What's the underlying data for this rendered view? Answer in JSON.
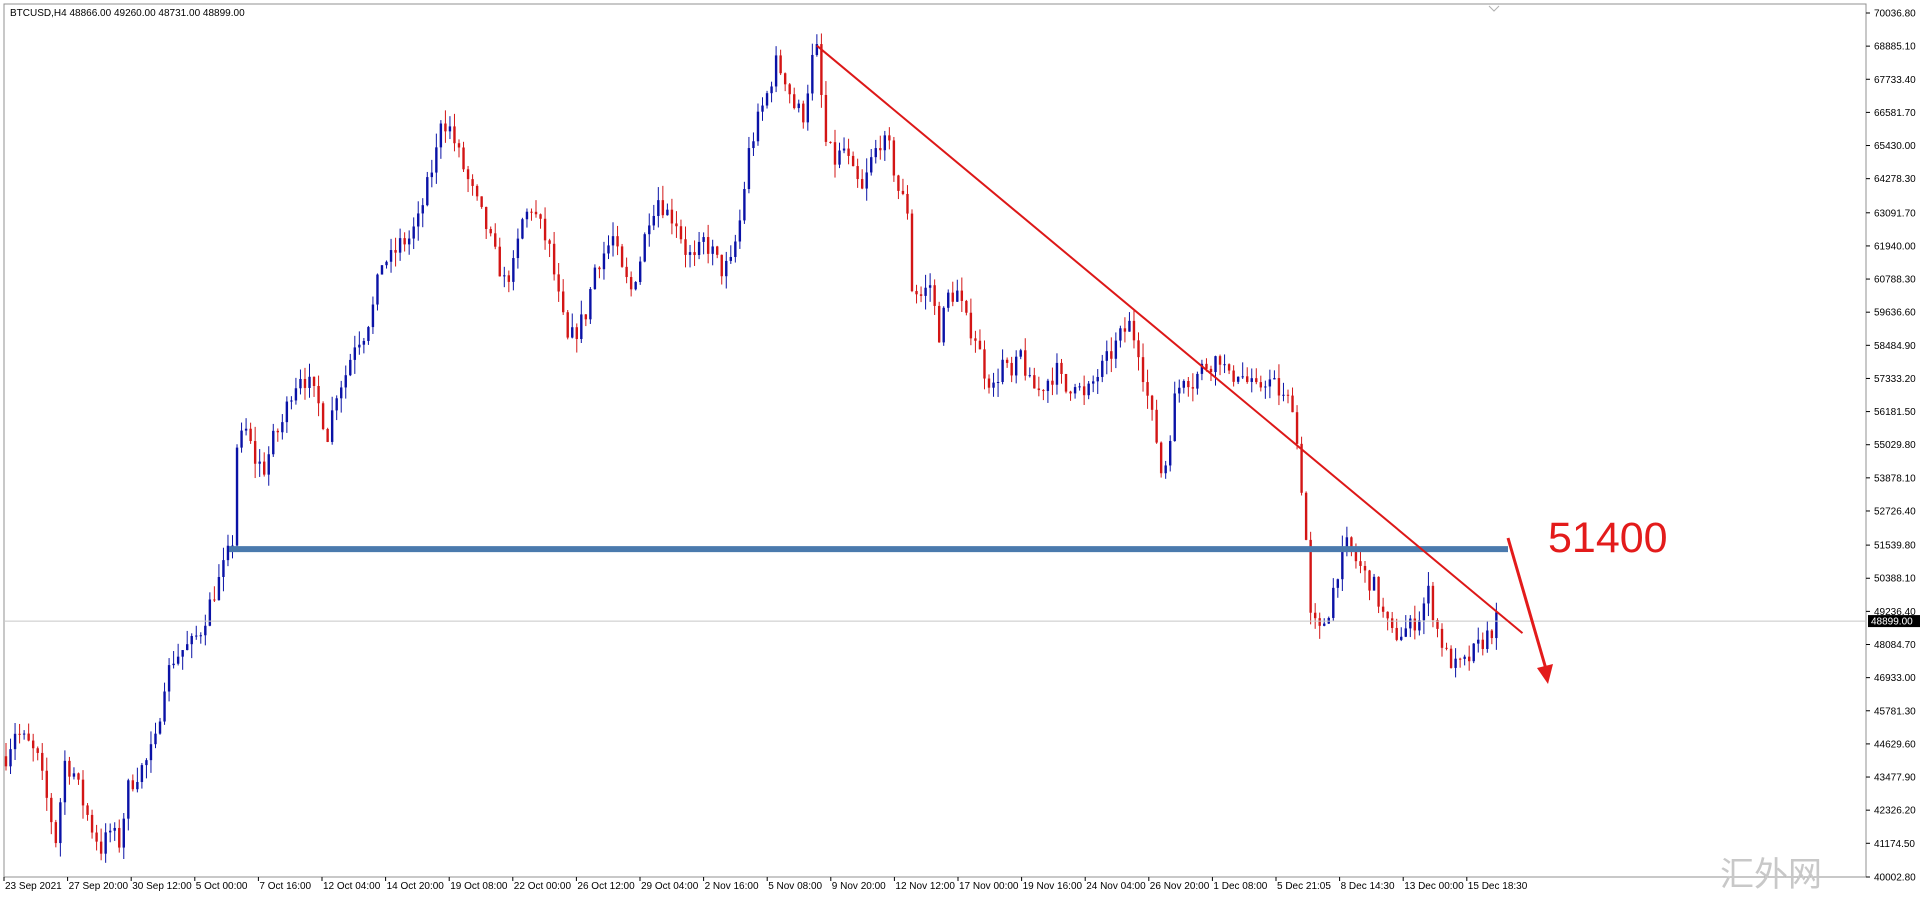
{
  "window": {
    "symbol_info": "BTCUSD,H4  48866.00 49260.00 48731.00 48899.00",
    "watermark": "汇外网"
  },
  "chart_data": {
    "type": "candlestick",
    "symbol": "BTCUSD",
    "timeframe": "H4",
    "ohlc_header": {
      "open": 48866.0,
      "high": 49260.0,
      "low": 48731.0,
      "close": 48899.0
    },
    "current_price": 48899.0,
    "current_price_label": "48899.00",
    "ylim": [
      40002.8,
      70036.8
    ],
    "y_ticks": [
      "70036.80",
      "68885.10",
      "67733.40",
      "66581.70",
      "65430.00",
      "64278.30",
      "63091.70",
      "61940.00",
      "60788.30",
      "59636.60",
      "58484.90",
      "57333.20",
      "56181.50",
      "55029.80",
      "53878.10",
      "52726.40",
      "51539.80",
      "50388.10",
      "49236.40",
      "48084.70",
      "46933.00",
      "45781.30",
      "44629.60",
      "43477.90",
      "42326.20",
      "41174.50",
      "40002.80"
    ],
    "x_ticks": [
      "23 Sep 2021",
      "27 Sep 20:00",
      "30 Sep 12:00",
      "5 Oct 00:00",
      "7 Oct 16:00",
      "12 Oct 04:00",
      "14 Oct 20:00",
      "19 Oct 08:00",
      "22 Oct 00:00",
      "26 Oct 12:00",
      "29 Oct 04:00",
      "2 Nov 16:00",
      "5 Nov 08:00",
      "9 Nov 20:00",
      "12 Nov 12:00",
      "17 Nov 00:00",
      "19 Nov 16:00",
      "24 Nov 04:00",
      "26 Nov 20:00",
      "1 Dec 08:00",
      "5 Dec 21:05",
      "8 Dec 14:30",
      "13 Dec 00:00",
      "15 Dec 18:30"
    ],
    "price_path": [
      [
        0,
        44200
      ],
      [
        2,
        45100
      ],
      [
        5,
        44600
      ],
      [
        7,
        44100
      ],
      [
        9,
        42700
      ],
      [
        11,
        41300
      ],
      [
        13,
        44000
      ],
      [
        15,
        43600
      ],
      [
        17,
        42600
      ],
      [
        19,
        41700
      ],
      [
        21,
        41000
      ],
      [
        23,
        41600
      ],
      [
        25,
        41200
      ],
      [
        27,
        43100
      ],
      [
        29,
        43600
      ],
      [
        31,
        44000
      ],
      [
        33,
        44700
      ],
      [
        35,
        46800
      ],
      [
        37,
        47600
      ],
      [
        39,
        47900
      ],
      [
        41,
        48100
      ],
      [
        43,
        48600
      ],
      [
        45,
        49500
      ],
      [
        47,
        50300
      ],
      [
        49,
        51200
      ],
      [
        50,
        51700
      ],
      [
        51,
        55000
      ],
      [
        53,
        55500
      ],
      [
        55,
        54500
      ],
      [
        57,
        54200
      ],
      [
        59,
        55200
      ],
      [
        61,
        55800
      ],
      [
        63,
        56900
      ],
      [
        65,
        57500
      ],
      [
        67,
        57100
      ],
      [
        69,
        56400
      ],
      [
        71,
        55400
      ],
      [
        73,
        56900
      ],
      [
        75,
        57500
      ],
      [
        77,
        58600
      ],
      [
        79,
        58900
      ],
      [
        81,
        59800
      ],
      [
        83,
        61400
      ],
      [
        85,
        61500
      ],
      [
        87,
        62000
      ],
      [
        89,
        62200
      ],
      [
        91,
        62800
      ],
      [
        93,
        64000
      ],
      [
        95,
        65200
      ],
      [
        96,
        66400
      ],
      [
        98,
        66000
      ],
      [
        100,
        65100
      ],
      [
        102,
        64200
      ],
      [
        104,
        63400
      ],
      [
        106,
        62600
      ],
      [
        108,
        61600
      ],
      [
        110,
        60700
      ],
      [
        112,
        61200
      ],
      [
        114,
        62800
      ],
      [
        116,
        63300
      ],
      [
        118,
        62600
      ],
      [
        120,
        61800
      ],
      [
        122,
        60100
      ],
      [
        124,
        58600
      ],
      [
        126,
        59000
      ],
      [
        128,
        59600
      ],
      [
        130,
        61200
      ],
      [
        132,
        61700
      ],
      [
        134,
        62200
      ],
      [
        136,
        61000
      ],
      [
        138,
        60400
      ],
      [
        140,
        61500
      ],
      [
        142,
        63000
      ],
      [
        144,
        63600
      ],
      [
        146,
        63100
      ],
      [
        148,
        62800
      ],
      [
        150,
        61800
      ],
      [
        152,
        61400
      ],
      [
        154,
        62100
      ],
      [
        156,
        61700
      ],
      [
        158,
        61100
      ],
      [
        160,
        61300
      ],
      [
        162,
        62800
      ],
      [
        164,
        65200
      ],
      [
        166,
        66300
      ],
      [
        168,
        67200
      ],
      [
        170,
        68300
      ],
      [
        172,
        67800
      ],
      [
        174,
        66800
      ],
      [
        176,
        66500
      ],
      [
        178,
        68400
      ],
      [
        179,
        68700
      ],
      [
        181,
        65500
      ],
      [
        183,
        64900
      ],
      [
        185,
        65300
      ],
      [
        187,
        64400
      ],
      [
        189,
        63800
      ],
      [
        191,
        64900
      ],
      [
        193,
        65600
      ],
      [
        195,
        65300
      ],
      [
        197,
        63900
      ],
      [
        199,
        63200
      ],
      [
        200,
        60500
      ],
      [
        202,
        60200
      ],
      [
        204,
        60600
      ],
      [
        206,
        58900
      ],
      [
        208,
        60200
      ],
      [
        210,
        60300
      ],
      [
        212,
        59300
      ],
      [
        214,
        58800
      ],
      [
        216,
        57600
      ],
      [
        218,
        57000
      ],
      [
        220,
        57900
      ],
      [
        222,
        57300
      ],
      [
        224,
        58200
      ],
      [
        226,
        57100
      ],
      [
        228,
        56900
      ],
      [
        230,
        57300
      ],
      [
        232,
        57600
      ],
      [
        234,
        56900
      ],
      [
        236,
        57300
      ],
      [
        238,
        56600
      ],
      [
        240,
        57200
      ],
      [
        242,
        57700
      ],
      [
        244,
        58200
      ],
      [
        246,
        58800
      ],
      [
        248,
        59200
      ],
      [
        250,
        58400
      ],
      [
        252,
        56700
      ],
      [
        254,
        55200
      ],
      [
        255,
        54100
      ],
      [
        256,
        54400
      ],
      [
        258,
        56600
      ],
      [
        260,
        57500
      ],
      [
        262,
        57200
      ],
      [
        264,
        57700
      ],
      [
        266,
        57900
      ],
      [
        268,
        58100
      ],
      [
        270,
        57300
      ],
      [
        272,
        57600
      ],
      [
        274,
        57200
      ],
      [
        276,
        56900
      ],
      [
        278,
        57300
      ],
      [
        280,
        57100
      ],
      [
        282,
        56600
      ],
      [
        284,
        56500
      ],
      [
        286,
        53600
      ],
      [
        287,
        51700
      ],
      [
        288,
        49000
      ],
      [
        290,
        48500
      ],
      [
        292,
        49300
      ],
      [
        294,
        50700
      ],
      [
        296,
        51500
      ],
      [
        298,
        51000
      ],
      [
        300,
        50500
      ],
      [
        302,
        50100
      ],
      [
        304,
        49100
      ],
      [
        306,
        48400
      ],
      [
        308,
        48500
      ],
      [
        310,
        48700
      ],
      [
        312,
        49100
      ],
      [
        314,
        49900
      ],
      [
        316,
        48600
      ],
      [
        318,
        47700
      ],
      [
        320,
        47300
      ],
      [
        322,
        47400
      ],
      [
        324,
        47800
      ],
      [
        326,
        48200
      ],
      [
        328,
        48600
      ],
      [
        329,
        48900
      ]
    ],
    "resistance_level": 51400,
    "resistance_label": "51400",
    "trendline": {
      "start": [
        179,
        68900
      ],
      "end": [
        316,
        49350
      ]
    },
    "arrow": {
      "from": [
        315,
        50900
      ],
      "to": [
        323,
        46750
      ]
    },
    "colors": {
      "bull": "#0a12a6",
      "bear": "#d31515",
      "trendline": "#dd1818",
      "level": "#4a7aad",
      "annotation": "#e31b1b",
      "grid": "#c8c8c8",
      "axis": "#909090"
    }
  }
}
